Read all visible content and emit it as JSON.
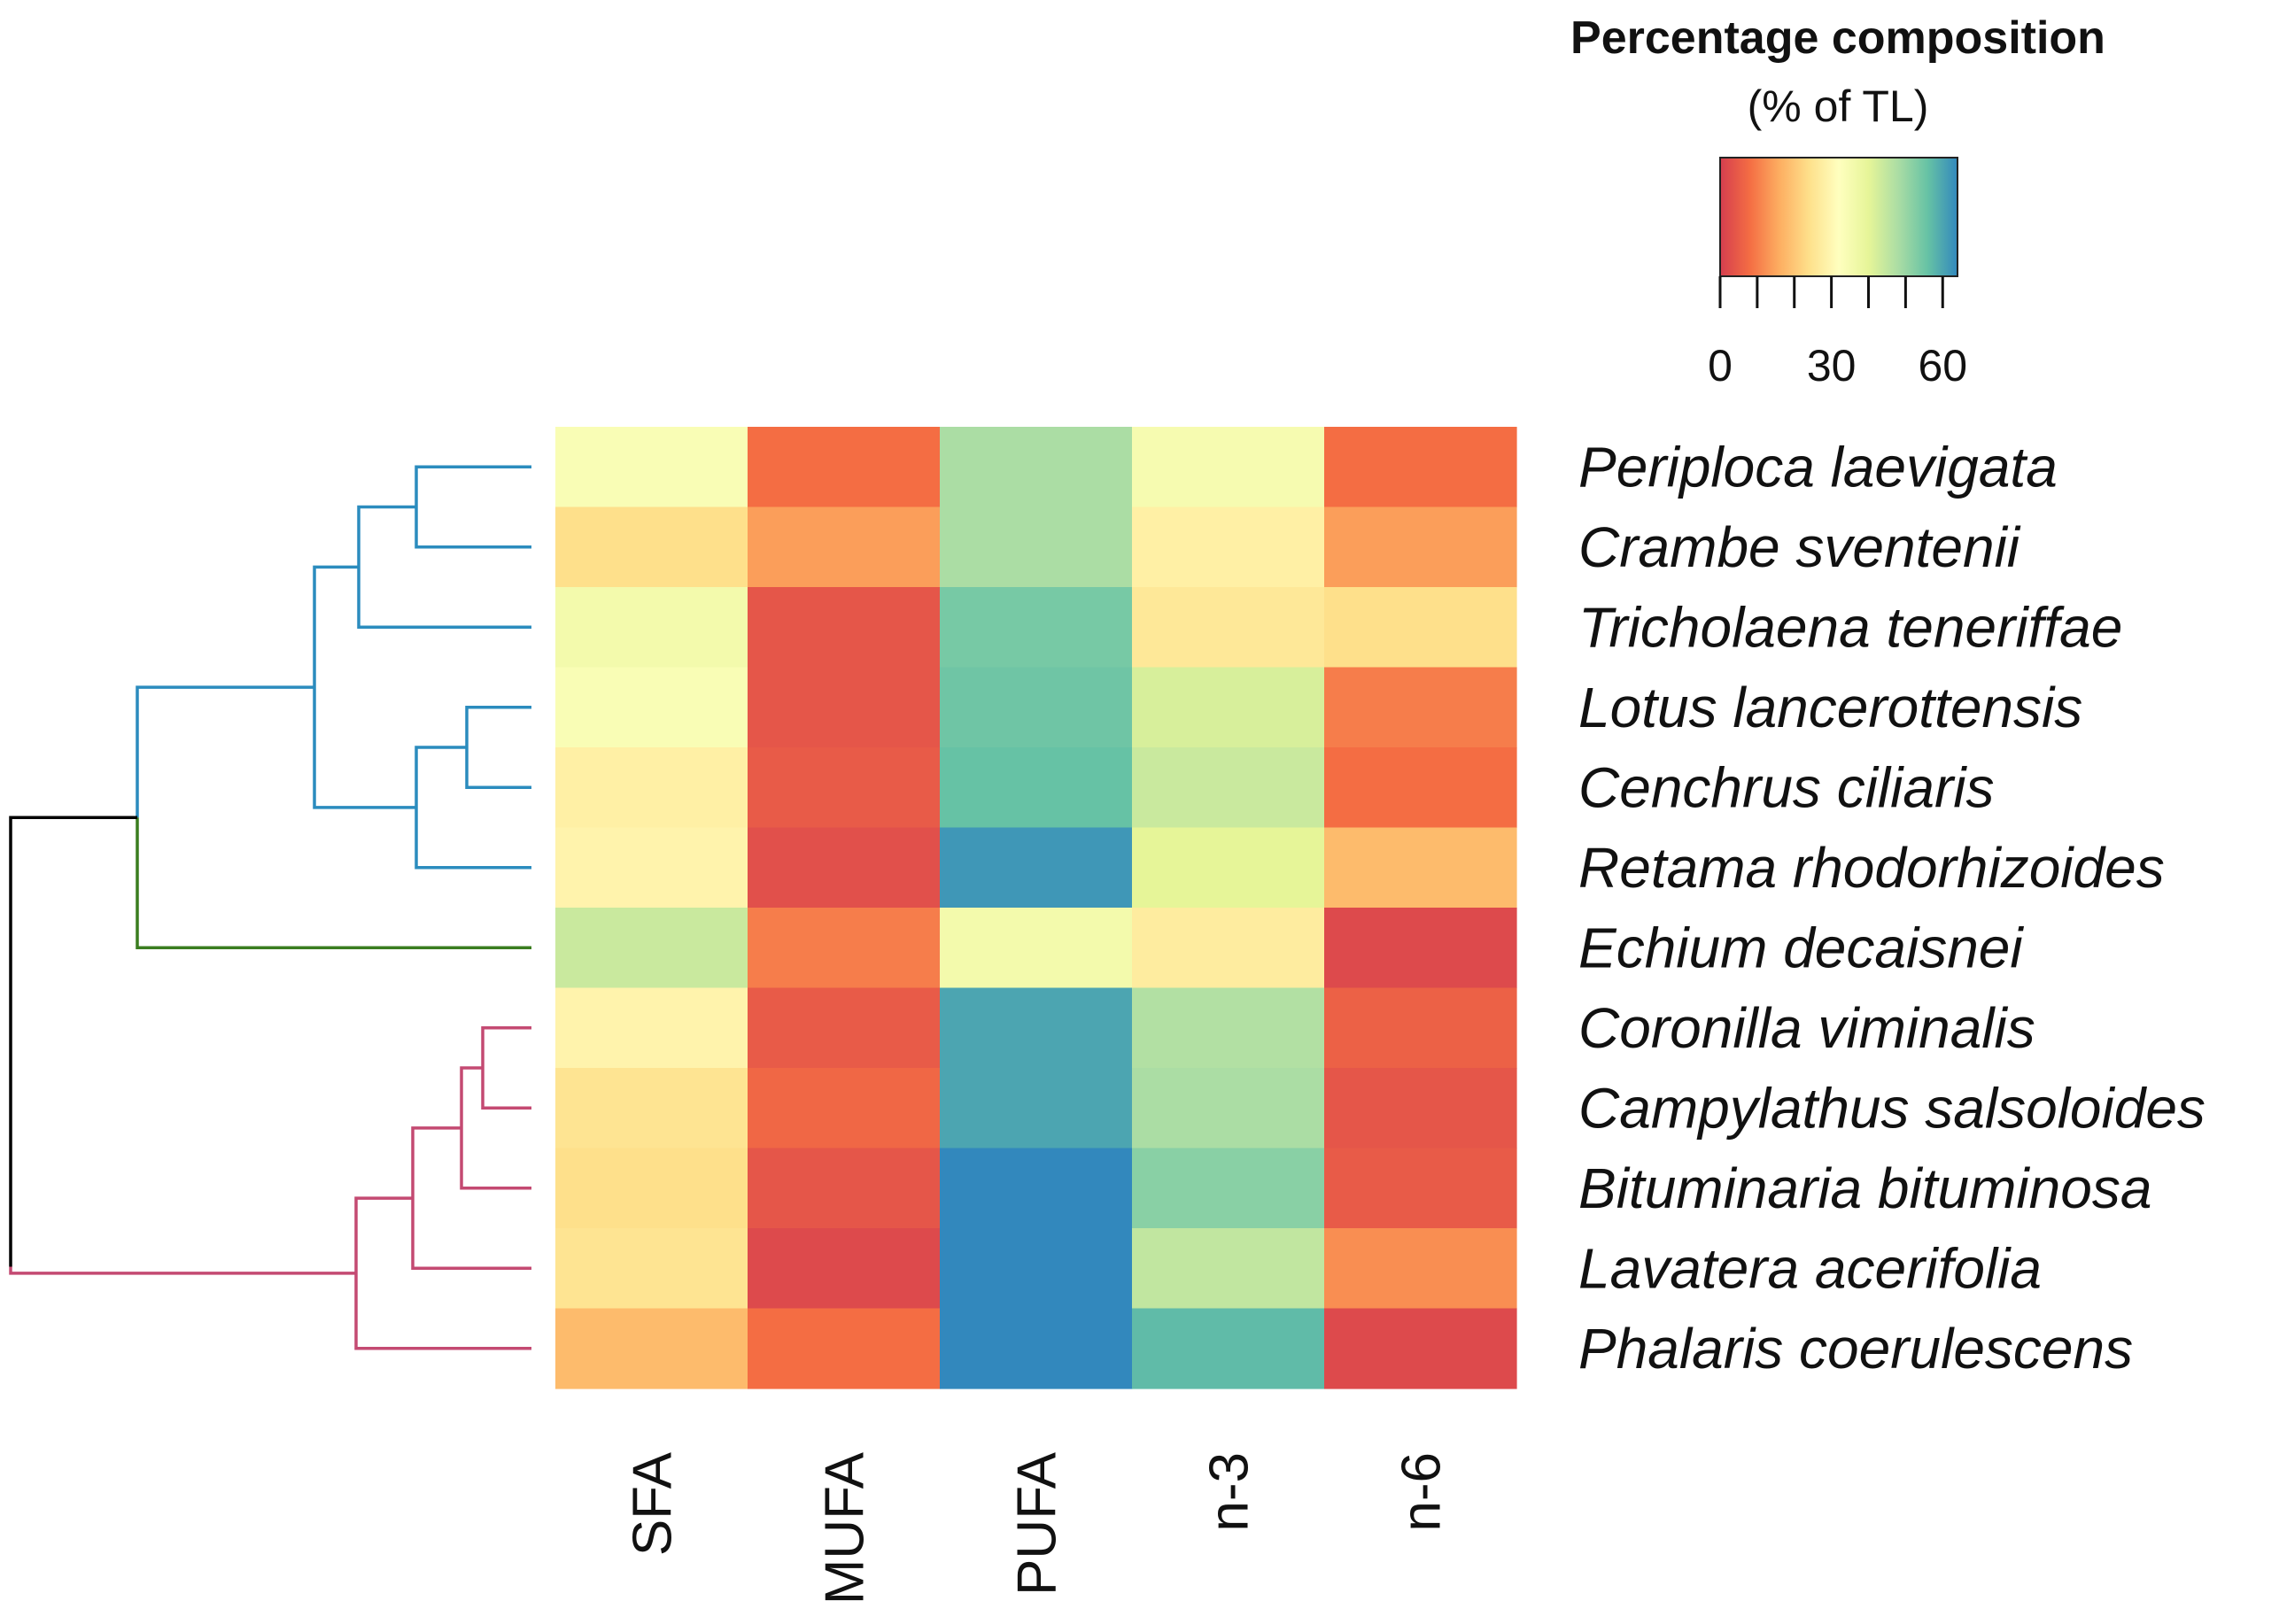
{
  "chart_data": {
    "type": "heatmap",
    "columns": [
      "SFA",
      "MUFA",
      "PUFA",
      "n-3",
      "n-6"
    ],
    "rows": [
      "Periploca laevigata",
      "Crambe sventenii",
      "Tricholaena teneriffae",
      "Lotus lancerottensis",
      "Cenchrus ciliaris",
      "Retama rhodorhizoides",
      "Echium decaisnei",
      "Coronilla viminalis",
      "Campylathus salsoloides",
      "Bituminaria bituminosa",
      "Lavatera acerifolia",
      "Phalaris coerulescens"
    ],
    "values": [
      [
        34,
        8,
        48,
        35,
        8
      ],
      [
        24,
        14,
        48,
        28,
        14
      ],
      [
        36,
        4,
        54,
        26,
        24
      ],
      [
        34,
        4,
        55,
        42,
        10
      ],
      [
        28,
        5,
        56,
        44,
        8
      ],
      [
        29,
        3,
        62,
        40,
        18
      ],
      [
        44,
        10,
        36,
        27,
        2
      ],
      [
        29,
        5,
        60,
        47,
        6
      ],
      [
        25,
        7,
        60,
        48,
        4
      ],
      [
        24,
        4,
        65,
        52,
        5
      ],
      [
        25,
        2,
        67,
        45,
        12
      ],
      [
        18,
        8,
        65,
        57,
        2
      ]
    ],
    "colorbar": {
      "title": "Percentage composition",
      "subtitle": "(% of TL)",
      "min": 0,
      "max": 64,
      "ticks": [
        0,
        10,
        20,
        30,
        40,
        50,
        60
      ],
      "tick_labels": [
        "0",
        "30",
        "60"
      ],
      "colors": [
        "#d53e4f",
        "#f46d43",
        "#fdae61",
        "#fee08b",
        "#ffffbf",
        "#e6f598",
        "#abdda4",
        "#66c2a5",
        "#3288bd"
      ]
    },
    "dendrogram": {
      "clusters": [
        {
          "name": "cluster-1",
          "color": "#2b8cbe",
          "members": [
            "Periploca laevigata",
            "Crambe sventenii",
            "Tricholaena teneriffae",
            "Lotus lancerottensis",
            "Cenchrus ciliaris",
            "Retama rhodorhizoides"
          ]
        },
        {
          "name": "cluster-2",
          "color": "#3a7d1f",
          "members": [
            "Echium decaisnei"
          ]
        },
        {
          "name": "cluster-3",
          "color": "#c44a72",
          "members": [
            "Coronilla viminalis",
            "Campylathus salsoloides",
            "Bituminaria bituminosa",
            "Lavatera acerifolia",
            "Phalaris coerulescens"
          ]
        }
      ],
      "root_color": "#000000"
    }
  }
}
